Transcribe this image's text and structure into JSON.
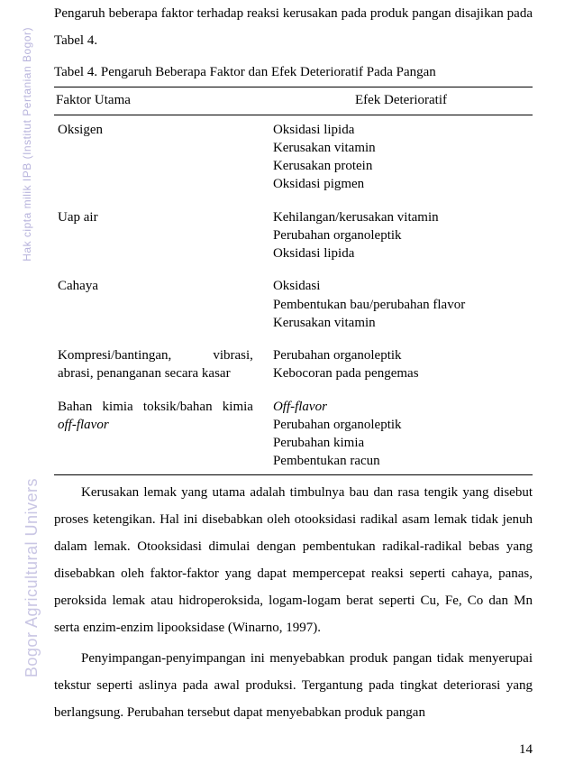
{
  "intro_text": "Pengaruh beberapa faktor terhadap reaksi kerusakan pada produk pangan disajikan pada Tabel 4.",
  "table": {
    "caption": "Tabel 4. Pengaruh Beberapa Faktor dan Efek Deterioratif Pada Pangan",
    "columns": [
      "Faktor Utama",
      "Efek Deterioratif"
    ],
    "col_widths_pct": [
      45,
      55
    ],
    "border_color": "#000000",
    "rows": [
      {
        "factor": "Oksigen",
        "factor_italic": false,
        "effects": [
          "Oksidasi lipida",
          "Kerusakan vitamin",
          "Kerusakan protein",
          "Oksidasi pigmen"
        ]
      },
      {
        "factor": "Uap air",
        "factor_italic": false,
        "effects": [
          "Kehilangan/kerusakan vitamin",
          "Perubahan organoleptik",
          "Oksidasi lipida"
        ]
      },
      {
        "factor": "Cahaya",
        "factor_italic": false,
        "effects": [
          "Oksidasi",
          "Pembentukan bau/perubahan flavor",
          "Kerusakan vitamin"
        ]
      },
      {
        "factor": "Kompresi/bantingan, vibrasi, abrasi, penanganan secara kasar",
        "factor_italic": false,
        "effects": [
          "Perubahan organoleptik",
          "Kebocoran pada pengemas"
        ]
      },
      {
        "factor_prefix": "Bahan kimia toksik/bahan kimia ",
        "factor_suffix": "off-flavor",
        "factor_italic": true,
        "effects_html": [
          "<span class=\"italic\">Off-flavor</span>",
          "Perubahan organoleptik",
          "Perubahan kimia",
          "Pembentukan racun"
        ]
      }
    ]
  },
  "paragraphs": [
    "Kerusakan lemak yang utama adalah timbulnya bau dan rasa tengik yang disebut proses ketengikan. Hal ini disebabkan oleh otooksidasi radikal asam lemak tidak jenuh dalam lemak. Otooksidasi dimulai dengan pembentukan radikal-radikal bebas yang disebabkan oleh faktor-faktor yang dapat mempercepat reaksi seperti cahaya, panas, peroksida lemak atau hidroperoksida, logam-logam berat seperti Cu, Fe, Co dan Mn serta enzim-enzim lipooksidase (Winarno, 1997).",
    "Penyimpangan-penyimpangan ini menyebabkan produk pangan tidak menyerupai tekstur seperti aslinya pada awal produksi. Tergantung pada tingkat deteriorasi yang berlangsung. Perubahan tersebut dapat menyebabkan produk pangan"
  ],
  "watermark": {
    "wm1": "Hak cipta milik IPB (Institut Pertanian Bogor)",
    "wm2": "Bogor Agricultural Univers",
    "color1": "#b7b3dc",
    "color2": "#c9c6e4"
  },
  "page_number": "14",
  "typography": {
    "body_font": "Times New Roman",
    "body_size_pt": 11,
    "line_height_body": 2.0,
    "table_line_height": 1.35,
    "text_color": "#000000",
    "background_color": "#ffffff"
  }
}
